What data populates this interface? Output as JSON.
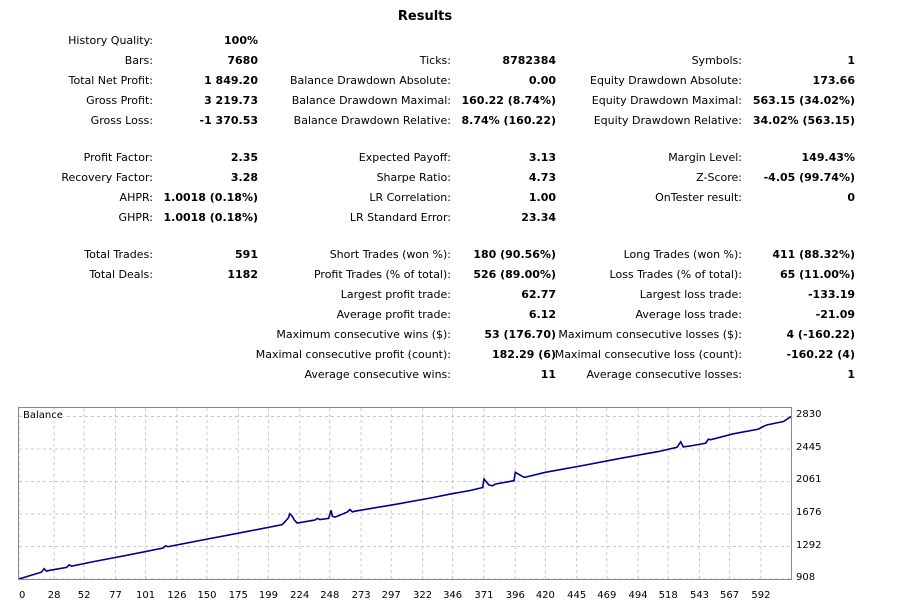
{
  "report": {
    "title": "Results",
    "history_quality": {
      "label": "History Quality:",
      "value": "100%"
    },
    "bars": {
      "label": "Bars:",
      "value": "7680"
    },
    "ticks": {
      "label": "Ticks:",
      "value": "8782384"
    },
    "symbols": {
      "label": "Symbols:",
      "value": "1"
    },
    "total_net_profit": {
      "label": "Total Net Profit:",
      "value": "1 849.20"
    },
    "balance_dd_abs": {
      "label": "Balance Drawdown Absolute:",
      "value": "0.00"
    },
    "equity_dd_abs": {
      "label": "Equity Drawdown Absolute:",
      "value": "173.66"
    },
    "gross_profit": {
      "label": "Gross Profit:",
      "value": "3 219.73"
    },
    "balance_dd_max": {
      "label": "Balance Drawdown Maximal:",
      "value": "160.22 (8.74%)"
    },
    "equity_dd_max": {
      "label": "Equity Drawdown Maximal:",
      "value": "563.15 (34.02%)"
    },
    "gross_loss": {
      "label": "Gross Loss:",
      "value": "-1 370.53"
    },
    "balance_dd_rel": {
      "label": "Balance Drawdown Relative:",
      "value": "8.74% (160.22)"
    },
    "equity_dd_rel": {
      "label": "Equity Drawdown Relative:",
      "value": "34.02% (563.15)"
    },
    "profit_factor": {
      "label": "Profit Factor:",
      "value": "2.35"
    },
    "expected_payoff": {
      "label": "Expected Payoff:",
      "value": "3.13"
    },
    "margin_level": {
      "label": "Margin Level:",
      "value": "149.43%"
    },
    "recovery_factor": {
      "label": "Recovery Factor:",
      "value": "3.28"
    },
    "sharpe_ratio": {
      "label": "Sharpe Ratio:",
      "value": "4.73"
    },
    "z_score": {
      "label": "Z-Score:",
      "value": "-4.05 (99.74%)"
    },
    "ahpr": {
      "label": "AHPR:",
      "value": "1.0018 (0.18%)"
    },
    "lr_correlation": {
      "label": "LR Correlation:",
      "value": "1.00"
    },
    "ontester": {
      "label": "OnTester result:",
      "value": "0"
    },
    "ghpr": {
      "label": "GHPR:",
      "value": "1.0018 (0.18%)"
    },
    "lr_std_error": {
      "label": "LR Standard Error:",
      "value": "23.34"
    },
    "total_trades": {
      "label": "Total Trades:",
      "value": "591"
    },
    "short_trades": {
      "label": "Short Trades (won %):",
      "value": "180 (90.56%)"
    },
    "long_trades": {
      "label": "Long Trades (won %):",
      "value": "411 (88.32%)"
    },
    "total_deals": {
      "label": "Total Deals:",
      "value": "1182"
    },
    "profit_trades": {
      "label": "Profit Trades (% of total):",
      "value": "526 (89.00%)"
    },
    "loss_trades": {
      "label": "Loss Trades (% of total):",
      "value": "65 (11.00%)"
    },
    "largest_profit": {
      "label": "Largest profit trade:",
      "value": "62.77"
    },
    "largest_loss": {
      "label": "Largest loss trade:",
      "value": "-133.19"
    },
    "avg_profit": {
      "label": "Average profit trade:",
      "value": "6.12"
    },
    "avg_loss": {
      "label": "Average loss trade:",
      "value": "-21.09"
    },
    "max_consec_wins": {
      "label": "Maximum consecutive wins ($):",
      "value": "53 (176.70)"
    },
    "max_consec_losses": {
      "label": "Maximum consecutive losses ($):",
      "value": "4 (-160.22)"
    },
    "maximal_consec_profit": {
      "label": "Maximal consecutive profit (count):",
      "value": "182.29 (6)"
    },
    "maximal_consec_loss": {
      "label": "Maximal consecutive loss (count):",
      "value": "-160.22 (4)"
    },
    "avg_consec_wins": {
      "label": "Average consecutive wins:",
      "value": "11"
    },
    "avg_consec_losses": {
      "label": "Average consecutive losses:",
      "value": "1"
    }
  },
  "chart_data": {
    "type": "line",
    "title": "Balance",
    "xlabel": "",
    "ylabel": "",
    "grid": true,
    "line_color": "#00008b",
    "xlim": [
      0,
      616
    ],
    "ylim": [
      908,
      2930
    ],
    "y_ticks": [
      908,
      1292,
      1676,
      2061,
      2445,
      2830
    ],
    "x_ticks": [
      0,
      28,
      52,
      77,
      101,
      126,
      150,
      175,
      199,
      224,
      248,
      273,
      297,
      322,
      346,
      371,
      396,
      420,
      445,
      469,
      494,
      518,
      543,
      567,
      592
    ],
    "y_tick_labels": [
      "908",
      "1292",
      "1676",
      "2061",
      "2445",
      "2830"
    ],
    "x_tick_labels": [
      "0",
      "28",
      "52",
      "77",
      "101",
      "126",
      "150",
      "175",
      "199",
      "224",
      "248",
      "273",
      "297",
      "322",
      "346",
      "371",
      "396",
      "420",
      "445",
      "469",
      "494",
      "518",
      "543",
      "567",
      "592"
    ],
    "series": [
      {
        "x": [
          0,
          18,
          20,
          22,
          24,
          38,
          40,
          42,
          60,
          90,
          115,
          117,
          119,
          150,
          175,
          210,
          215,
          216,
          218,
          220,
          222,
          236,
          238,
          240,
          247,
          249,
          250,
          252,
          254,
          262,
          264,
          266,
          268,
          300,
          330,
          345,
          360,
          370,
          371,
          375,
          378,
          380,
          395,
          396,
          400,
          403,
          405,
          420,
          450,
          480,
          510,
          525,
          528,
          530,
          535,
          548,
          550,
          552,
          570,
          590,
          595,
          597,
          610,
          616
        ],
        "y": [
          908,
          990,
          1030,
          1000,
          1010,
          1045,
          1075,
          1060,
          1115,
          1200,
          1275,
          1300,
          1290,
          1380,
          1450,
          1550,
          1630,
          1680,
          1650,
          1600,
          1570,
          1605,
          1625,
          1612,
          1625,
          1720,
          1650,
          1640,
          1650,
          1700,
          1730,
          1700,
          1710,
          1790,
          1870,
          1915,
          1955,
          1990,
          2090,
          2020,
          2010,
          2030,
          2070,
          2170,
          2135,
          2110,
          2115,
          2170,
          2250,
          2335,
          2415,
          2465,
          2530,
          2470,
          2480,
          2515,
          2560,
          2555,
          2625,
          2680,
          2720,
          2730,
          2770,
          2830
        ]
      }
    ]
  }
}
